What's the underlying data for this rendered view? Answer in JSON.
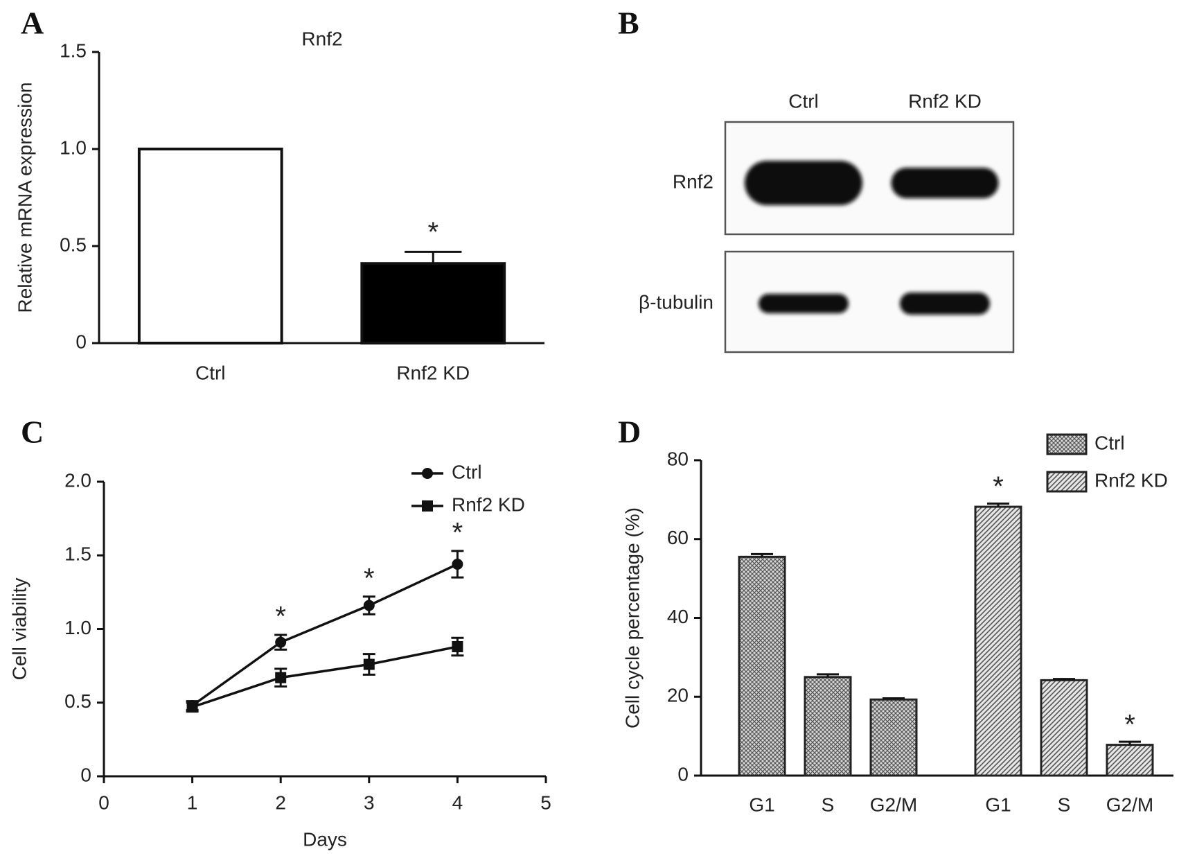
{
  "chart_data": [
    {
      "type": "bar",
      "panel": "A",
      "title": "Rnf2",
      "ylabel": "Relative mRNA expression",
      "categories": [
        "Ctrl",
        "Rnf2 KD"
      ],
      "values": [
        1.0,
        0.41
      ],
      "errors": [
        null,
        0.06
      ],
      "annotations": [
        null,
        "*"
      ],
      "colors": [
        "#ffffff",
        "#000000"
      ],
      "ylim": [
        0,
        1.5
      ],
      "yticks": [
        0,
        0.5,
        {
          "value": 1,
          "label": "1.0"
        },
        {
          "value": 1.5,
          "label": "1.5"
        }
      ]
    },
    {
      "type": "blot",
      "panel": "B",
      "categories": [
        "Ctrl",
        "Rnf2 KD"
      ],
      "rows": [
        "Rnf2",
        "β-tubulin"
      ]
    },
    {
      "type": "line",
      "panel": "C",
      "xlabel": "Days",
      "ylabel": "Cell viability",
      "x": [
        1,
        2,
        3,
        4
      ],
      "xlim": [
        0,
        5
      ],
      "xticks": [
        0,
        1,
        2,
        3,
        4,
        5
      ],
      "ylim": [
        0,
        2
      ],
      "yticks": [
        0,
        0.5,
        {
          "value": 1,
          "label": "1.0"
        },
        1.5,
        {
          "value": 2,
          "label": "2.0"
        }
      ],
      "series": [
        {
          "name": "Ctrl",
          "color": "#111111",
          "marker": "circle",
          "values": [
            0.48,
            0.91,
            1.16,
            1.44
          ],
          "errors": [
            0.03,
            0.05,
            0.06,
            0.09
          ],
          "annotations": [
            null,
            "*",
            "*",
            "*"
          ]
        },
        {
          "name": "Rnf2 KD",
          "color": "#111111",
          "marker": "square",
          "values": [
            0.47,
            0.67,
            0.76,
            0.88
          ],
          "errors": [
            0.03,
            0.06,
            0.07,
            0.06
          ],
          "annotations": [
            null,
            null,
            null,
            null
          ]
        }
      ]
    },
    {
      "type": "groupbar",
      "panel": "D",
      "ylabel": "Cell cycle percentage (%)",
      "categories": [
        "G1",
        "S",
        "G2/M"
      ],
      "ylim": [
        0,
        80
      ],
      "yticks": [
        0,
        20,
        40,
        60,
        80
      ],
      "series": [
        {
          "name": "Ctrl",
          "pattern": "crosshatch",
          "color": "#555555",
          "values": [
            55.5,
            25,
            19.3
          ],
          "errors": [
            0.7,
            0.7,
            0.3
          ],
          "annotations": [
            null,
            null,
            null
          ]
        },
        {
          "name": "Rnf2 KD",
          "pattern": "diagonal",
          "color": "#555555",
          "values": [
            68.2,
            24.2,
            7.8
          ],
          "errors": [
            0.8,
            0.3,
            0.8
          ],
          "annotations": [
            "*",
            null,
            "*"
          ]
        }
      ]
    }
  ]
}
